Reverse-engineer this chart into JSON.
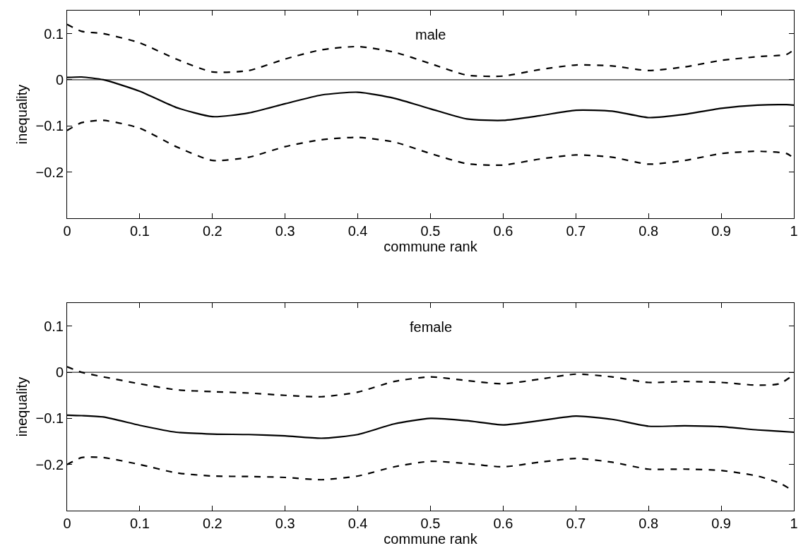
{
  "chart_data": [
    {
      "type": "line",
      "annotations": [
        "male"
      ],
      "xlabel": "commune rank",
      "ylabel": "inequality",
      "xlim": [
        0,
        1
      ],
      "ylim": [
        -0.3,
        0.15
      ],
      "xticks": [
        0,
        0.1,
        0.2,
        0.3,
        0.4,
        0.5,
        0.6,
        0.7,
        0.8,
        0.9,
        1
      ],
      "yticks": [
        -0.2,
        -0.1,
        0,
        0.1
      ],
      "marker": "none",
      "x": [
        0,
        0.02,
        0.05,
        0.1,
        0.15,
        0.2,
        0.25,
        0.3,
        0.35,
        0.4,
        0.45,
        0.5,
        0.55,
        0.6,
        0.65,
        0.7,
        0.75,
        0.8,
        0.85,
        0.9,
        0.95,
        0.99,
        1
      ],
      "ref_lines": [
        {
          "axis": "y",
          "value": 0,
          "color": "#000000",
          "line_style": "solid"
        }
      ],
      "series": [
        {
          "color": "#000000",
          "line_style": "solid",
          "values": [
            0.005,
            0.006,
            0,
            -0.025,
            -0.06,
            -0.08,
            -0.072,
            -0.052,
            -0.033,
            -0.027,
            -0.04,
            -0.063,
            -0.085,
            -0.088,
            -0.078,
            -0.066,
            -0.068,
            -0.082,
            -0.075,
            -0.062,
            -0.055,
            -0.054,
            -0.055
          ]
        },
        {
          "color": "#000000",
          "line_style": "dashed",
          "values": [
            0.12,
            0.105,
            0.1,
            0.08,
            0.045,
            0.017,
            0.02,
            0.045,
            0.065,
            0.072,
            0.06,
            0.035,
            0.01,
            0.008,
            0.022,
            0.032,
            0.03,
            0.02,
            0.028,
            0.042,
            0.05,
            0.055,
            0.065
          ]
        },
        {
          "color": "#000000",
          "line_style": "dashed",
          "values": [
            -0.11,
            -0.093,
            -0.088,
            -0.105,
            -0.145,
            -0.175,
            -0.168,
            -0.145,
            -0.13,
            -0.125,
            -0.135,
            -0.16,
            -0.182,
            -0.185,
            -0.172,
            -0.163,
            -0.168,
            -0.183,
            -0.175,
            -0.16,
            -0.155,
            -0.16,
            -0.17
          ]
        }
      ]
    },
    {
      "type": "line",
      "annotations": [
        "female"
      ],
      "xlabel": "commune rank",
      "ylabel": "inequality",
      "xlim": [
        0,
        1
      ],
      "ylim": [
        -0.3,
        0.15
      ],
      "xticks": [
        0,
        0.1,
        0.2,
        0.3,
        0.4,
        0.5,
        0.6,
        0.7,
        0.8,
        0.9,
        1
      ],
      "yticks": [
        -0.2,
        -0.1,
        0,
        0.1
      ],
      "marker": "none",
      "x": [
        0,
        0.02,
        0.05,
        0.1,
        0.15,
        0.2,
        0.25,
        0.3,
        0.35,
        0.4,
        0.45,
        0.5,
        0.55,
        0.6,
        0.65,
        0.7,
        0.75,
        0.8,
        0.85,
        0.9,
        0.95,
        0.98,
        1
      ],
      "ref_lines": [
        {
          "axis": "y",
          "value": 0,
          "color": "#000000",
          "line_style": "solid"
        }
      ],
      "series": [
        {
          "color": "#000000",
          "line_style": "solid",
          "values": [
            -0.093,
            -0.094,
            -0.097,
            -0.115,
            -0.13,
            -0.134,
            -0.135,
            -0.138,
            -0.143,
            -0.135,
            -0.112,
            -0.1,
            -0.105,
            -0.114,
            -0.105,
            -0.095,
            -0.102,
            -0.117,
            -0.116,
            -0.118,
            -0.125,
            -0.128,
            -0.13
          ]
        },
        {
          "color": "#000000",
          "line_style": "dashed",
          "values": [
            0.012,
            0,
            -0.01,
            -0.025,
            -0.038,
            -0.042,
            -0.045,
            -0.05,
            -0.053,
            -0.043,
            -0.02,
            -0.01,
            -0.018,
            -0.025,
            -0.015,
            -0.004,
            -0.01,
            -0.022,
            -0.02,
            -0.022,
            -0.028,
            -0.025,
            -0.005
          ]
        },
        {
          "color": "#000000",
          "line_style": "dashed",
          "values": [
            -0.2,
            -0.185,
            -0.185,
            -0.2,
            -0.218,
            -0.225,
            -0.226,
            -0.228,
            -0.233,
            -0.225,
            -0.205,
            -0.193,
            -0.198,
            -0.205,
            -0.195,
            -0.187,
            -0.195,
            -0.21,
            -0.21,
            -0.213,
            -0.225,
            -0.24,
            -0.258
          ]
        }
      ]
    }
  ]
}
